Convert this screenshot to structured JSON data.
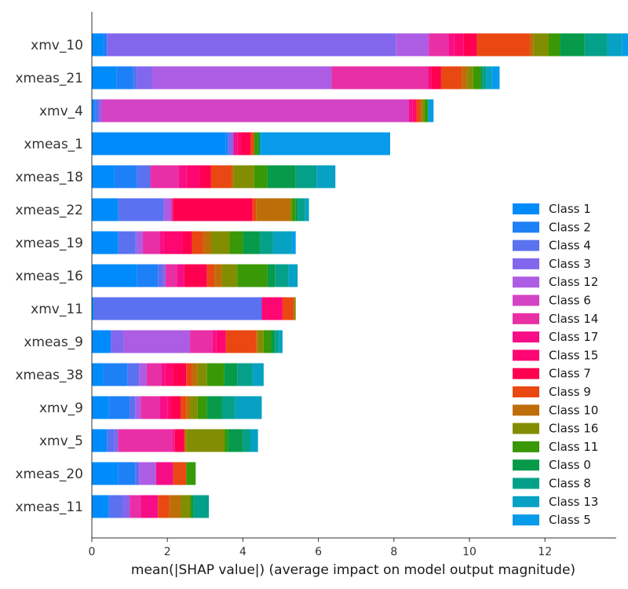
{
  "chart_data": {
    "type": "stacked-horizontal-bar",
    "xlabel": "mean(|SHAP value|) (average impact on model output magnitude)",
    "xlim": [
      0,
      13.9
    ],
    "xticks": [
      0,
      2,
      4,
      6,
      8,
      10,
      12
    ],
    "class_order": [
      "Class 1",
      "Class 2",
      "Class 4",
      "Class 3",
      "Class 12",
      "Class 6",
      "Class 14",
      "Class 17",
      "Class 15",
      "Class 7",
      "Class 9",
      "Class 10",
      "Class 16",
      "Class 11",
      "Class 0",
      "Class 8",
      "Class 13",
      "Class 5"
    ],
    "class_colors": {
      "Class 1": "#008bfb",
      "Class 2": "#1e80f7",
      "Class 4": "#5a71f0",
      "Class 3": "#8267ec",
      "Class 12": "#ad5de3",
      "Class 6": "#d443c3",
      "Class 14": "#e92fa5",
      "Class 17": "#f70e87",
      "Class 15": "#ff0773",
      "Class 7": "#ff0051",
      "Class 9": "#e94812",
      "Class 10": "#be6e08",
      "Class 16": "#838d02",
      "Class 11": "#399805",
      "Class 0": "#079a4a",
      "Class 8": "#05a08a",
      "Class 13": "#07a1c3",
      "Class 5": "#089bea"
    },
    "features": [
      {
        "name": "xmv_10",
        "values": [
          0.3,
          0.1,
          0.0,
          7.65,
          0.85,
          0.05,
          0.5,
          0.15,
          0.25,
          0.35,
          1.4,
          0.1,
          0.4,
          0.3,
          0.65,
          0.6,
          0.4,
          0.5
        ]
      },
      {
        "name": "xmeas_21",
        "values": [
          0.65,
          0.45,
          0.1,
          0.4,
          4.75,
          0.0,
          2.55,
          0.05,
          0.05,
          0.25,
          0.55,
          0.15,
          0.15,
          0.2,
          0.05,
          0.1,
          0.15,
          0.2
        ]
      },
      {
        "name": "xmv_4",
        "values": [
          0.05,
          0.05,
          0.1,
          0.05,
          0.0,
          8.15,
          0.0,
          0.1,
          0.05,
          0.05,
          0.1,
          0.05,
          0.05,
          0.1,
          0.0,
          0.0,
          0.05,
          0.1
        ]
      },
      {
        "name": "xmeas_1",
        "values": [
          3.55,
          0.05,
          0.05,
          0.1,
          0.0,
          0.0,
          0.0,
          0.1,
          0.1,
          0.25,
          0.1,
          0.0,
          0.0,
          0.1,
          0.05,
          0.0,
          0.05,
          3.4
        ]
      },
      {
        "name": "xmeas_18",
        "values": [
          0.6,
          0.6,
          0.35,
          0.0,
          0.0,
          0.0,
          0.75,
          0.2,
          0.35,
          0.3,
          0.55,
          0.05,
          0.55,
          0.35,
          0.75,
          0.55,
          0.5,
          0.0
        ]
      },
      {
        "name": "xmeas_22",
        "values": [
          0.7,
          0.0,
          1.2,
          0.0,
          0.2,
          0.0,
          0.05,
          0.0,
          0.0,
          2.1,
          0.1,
          0.9,
          0.05,
          0.1,
          0.05,
          0.2,
          0.1,
          0.0
        ]
      },
      {
        "name": "xmeas_19",
        "values": [
          0.7,
          0.0,
          0.45,
          0.05,
          0.15,
          0.0,
          0.45,
          0.1,
          0.5,
          0.25,
          0.3,
          0.2,
          0.5,
          0.35,
          0.45,
          0.35,
          0.5,
          0.1
        ]
      },
      {
        "name": "xmeas_16",
        "values": [
          1.2,
          0.55,
          0.1,
          0.1,
          0.0,
          0.0,
          0.3,
          0.2,
          0.0,
          0.6,
          0.2,
          0.2,
          0.4,
          0.8,
          0.2,
          0.35,
          0.25,
          0.0
        ]
      },
      {
        "name": "xmv_11",
        "values": [
          0.05,
          0.0,
          4.45,
          0.0,
          0.0,
          0.0,
          0.0,
          0.0,
          0.55,
          0.0,
          0.3,
          0.0,
          0.05,
          0.0,
          0.0,
          0.0,
          0.0,
          0.0
        ]
      },
      {
        "name": "xmeas_9",
        "values": [
          0.5,
          0.0,
          0.0,
          0.35,
          1.75,
          0.0,
          0.6,
          0.1,
          0.25,
          0.0,
          0.8,
          0.05,
          0.15,
          0.2,
          0.1,
          0.1,
          0.1,
          0.0
        ]
      },
      {
        "name": "xmeas_38",
        "values": [
          0.3,
          0.65,
          0.3,
          0.0,
          0.2,
          0.0,
          0.4,
          0.1,
          0.2,
          0.35,
          0.15,
          0.15,
          0.25,
          0.45,
          0.35,
          0.4,
          0.3,
          0.0
        ]
      },
      {
        "name": "xmv_9",
        "values": [
          0.45,
          0.55,
          0.15,
          0.0,
          0.15,
          0.0,
          0.5,
          0.2,
          0.1,
          0.25,
          0.15,
          0.1,
          0.2,
          0.25,
          0.4,
          0.35,
          0.7,
          0.0
        ]
      },
      {
        "name": "xmv_5",
        "values": [
          0.4,
          0.0,
          0.2,
          0.1,
          0.0,
          0.0,
          1.45,
          0.05,
          0.0,
          0.25,
          0.0,
          0.05,
          1.0,
          0.1,
          0.4,
          0.2,
          0.2,
          0.0
        ]
      },
      {
        "name": "xmeas_20",
        "values": [
          0.7,
          0.45,
          0.1,
          0.0,
          0.45,
          0.0,
          0.0,
          0.45,
          0.0,
          0.0,
          0.35,
          0.0,
          0.0,
          0.25,
          0.0,
          0.0,
          0.0,
          0.0
        ]
      },
      {
        "name": "xmeas_11",
        "values": [
          0.45,
          0.0,
          0.35,
          0.2,
          0.0,
          0.0,
          0.3,
          0.45,
          0.0,
          0.0,
          0.3,
          0.3,
          0.25,
          0.05,
          0.05,
          0.4,
          0.0,
          0.0
        ]
      }
    ]
  }
}
